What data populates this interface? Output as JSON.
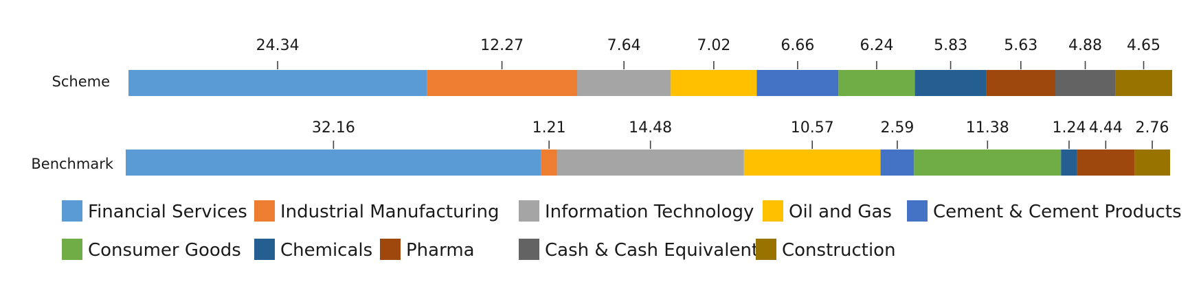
{
  "chart_data": {
    "type": "bar",
    "orientation": "horizontal",
    "stacked": true,
    "categories": [
      "Scheme",
      "Benchmark"
    ],
    "series": [
      {
        "name": "Financial Services",
        "values": [
          24.34,
          32.16
        ],
        "labels": [
          "24.34",
          "32.16"
        ],
        "color": "#5b9bd5"
      },
      {
        "name": "Industrial Manufacturing",
        "values": [
          12.27,
          1.21
        ],
        "labels": [
          "12.27",
          "1.21"
        ],
        "color": "#ed7d31"
      },
      {
        "name": "Information Technology",
        "values": [
          7.64,
          14.48
        ],
        "labels": [
          "7.64",
          "14.48"
        ],
        "color": "#a5a5a5"
      },
      {
        "name": "Oil and Gas",
        "values": [
          7.02,
          10.57
        ],
        "labels": [
          "7.02",
          "10.57"
        ],
        "color": "#ffc000"
      },
      {
        "name": "Cement & Cement Products",
        "values": [
          6.66,
          2.59
        ],
        "labels": [
          "6.66",
          "2.59"
        ],
        "color": "#4472c4"
      },
      {
        "name": "Consumer Goods",
        "values": [
          6.24,
          11.38
        ],
        "labels": [
          "6.24",
          "11.38"
        ],
        "color": "#70ad47"
      },
      {
        "name": "Chemicals",
        "values": [
          5.83,
          1.24
        ],
        "labels": [
          "5.83",
          "1.24"
        ],
        "color": "#255e91"
      },
      {
        "name": "Pharma",
        "values": [
          5.63,
          4.44
        ],
        "labels": [
          "5.63",
          "4.44"
        ],
        "color": "#9e480e"
      },
      {
        "name": "Cash & Cash Equivalent",
        "values": [
          4.88,
          0
        ],
        "labels": [
          "4.88",
          ""
        ],
        "color": "#636363"
      },
      {
        "name": "Construction",
        "values": [
          4.65,
          2.76
        ],
        "labels": [
          "4.65",
          "2.76"
        ],
        "color": "#997300"
      }
    ],
    "title": "",
    "xlabel": "",
    "ylabel": "",
    "grid": false,
    "legend_position": "bottom"
  }
}
